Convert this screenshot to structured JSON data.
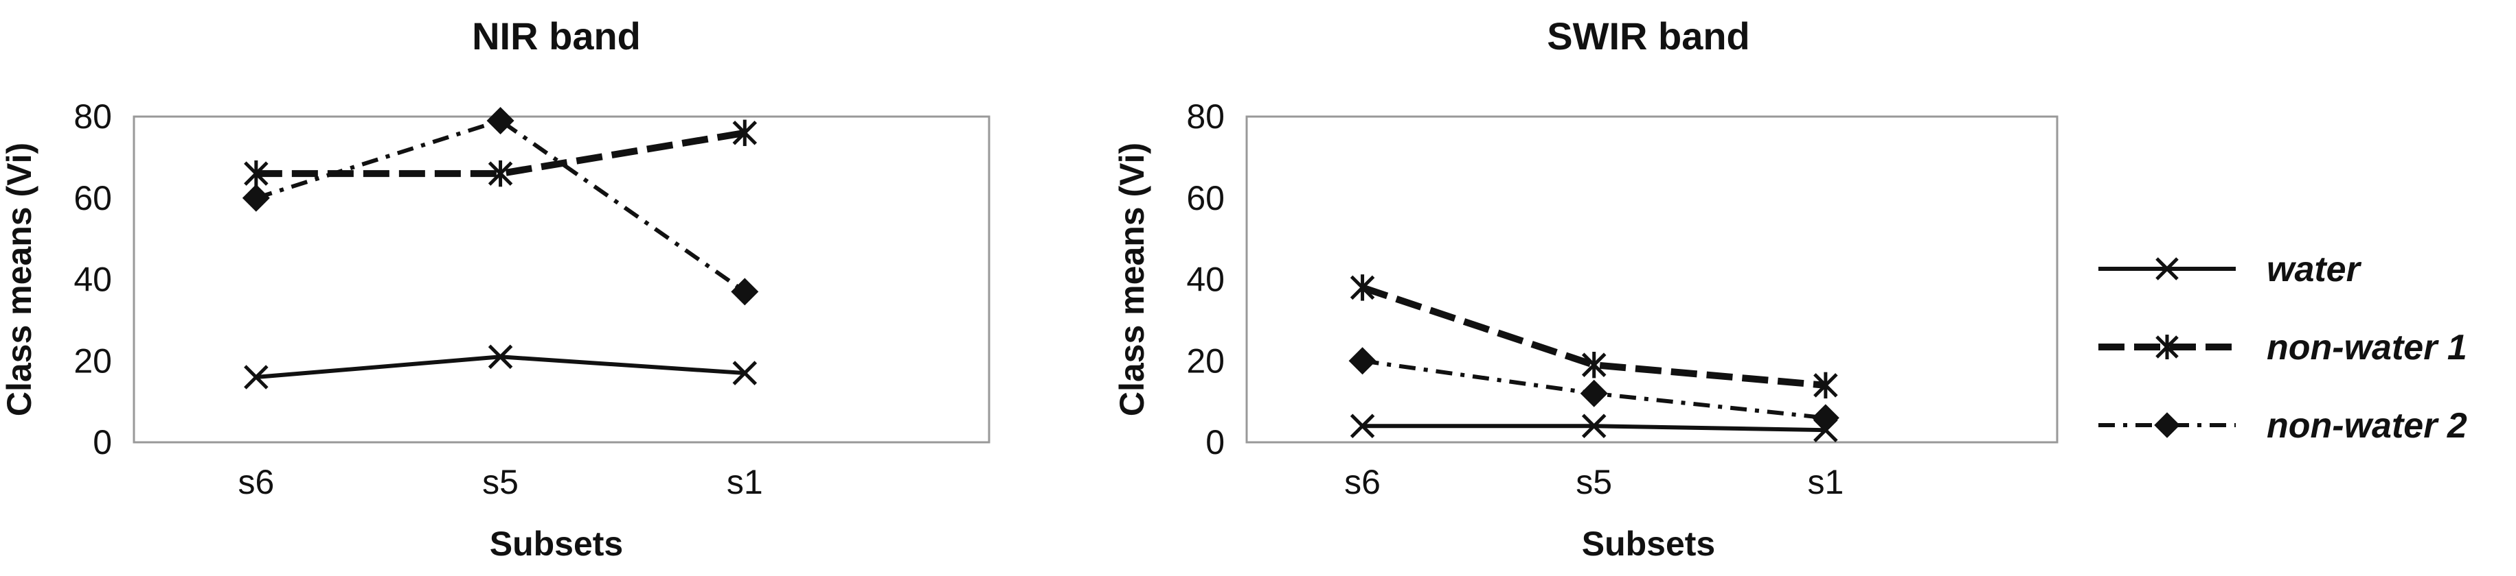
{
  "chart_data": [
    {
      "type": "line",
      "title": "NIR band",
      "xlabel": "Subsets",
      "ylabel": "Class means (Vi)",
      "categories": [
        "s6",
        "s5",
        "s1"
      ],
      "ylim": [
        0,
        80
      ],
      "yticks": [
        0,
        20,
        40,
        60,
        80
      ],
      "grid": false,
      "series": [
        {
          "name": "water",
          "values": [
            16,
            21,
            17
          ]
        },
        {
          "name": "non-water 1",
          "values": [
            66,
            66,
            76
          ]
        },
        {
          "name": "non-water 2",
          "values": [
            60,
            79,
            37
          ]
        }
      ]
    },
    {
      "type": "line",
      "title": "SWIR band",
      "xlabel": "Subsets",
      "ylabel": "Class means (Vi)",
      "categories": [
        "s6",
        "s5",
        "s1"
      ],
      "ylim": [
        0,
        80
      ],
      "yticks": [
        0,
        20,
        40,
        60,
        80
      ],
      "grid": false,
      "series": [
        {
          "name": "water",
          "values": [
            4,
            4,
            3
          ]
        },
        {
          "name": "non-water 1",
          "values": [
            38,
            19,
            14
          ]
        },
        {
          "name": "non-water 2",
          "values": [
            20,
            12,
            6
          ]
        }
      ]
    }
  ],
  "legend": {
    "placement": "right",
    "items": [
      {
        "label": "water",
        "style": "solid",
        "marker": "x-icon"
      },
      {
        "label": "non-water 1",
        "style": "dashed",
        "marker": "asterisk-icon"
      },
      {
        "label": "non-water 2",
        "style": "dash-dot",
        "marker": "diamond-icon"
      }
    ]
  },
  "colors": {
    "line": "#111111",
    "axis": "#999999",
    "background": "#ffffff"
  }
}
